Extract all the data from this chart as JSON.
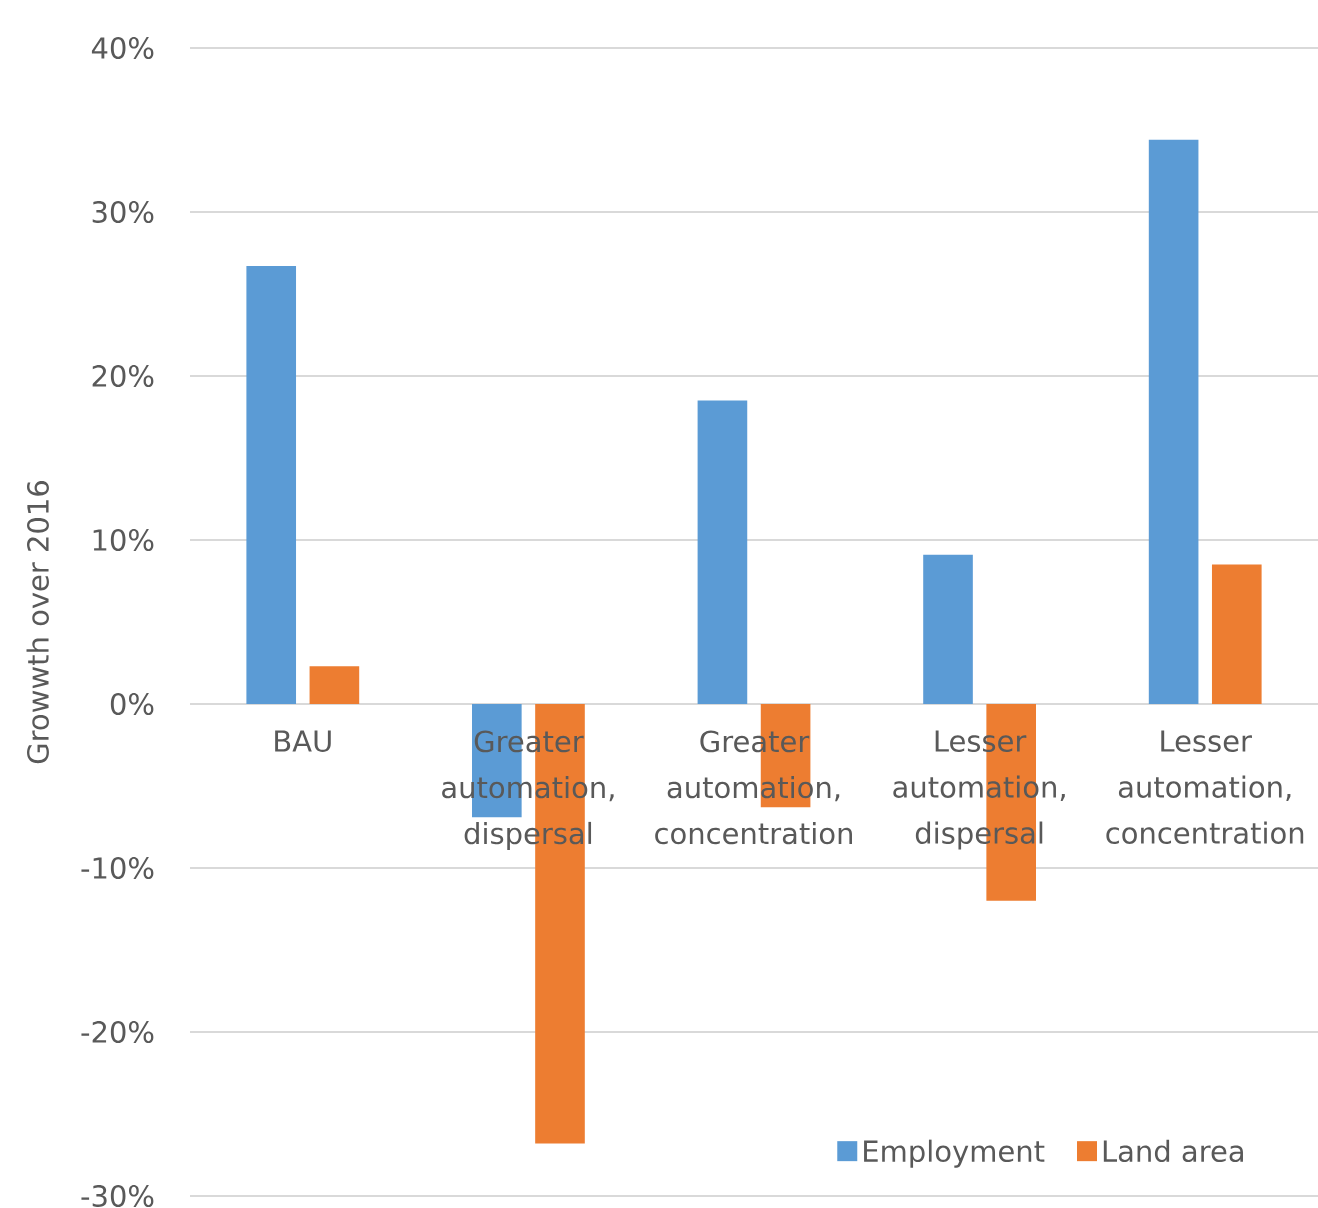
{
  "chart_data": {
    "type": "bar",
    "ylabel": "Growwth over 2016",
    "categories": [
      "BAU",
      "Greater automation, dispersal",
      "Greater automation, concentration",
      "Lesser automation, dispersal",
      "Lesser automation, concentration"
    ],
    "series": [
      {
        "name": "Employment",
        "color": "#5b9bd5",
        "values": [
          26.7,
          -6.9,
          18.5,
          9.1,
          34.4
        ]
      },
      {
        "name": "Land area",
        "color": "#ed7d31",
        "values": [
          2.3,
          -26.8,
          -6.3,
          -12.0,
          8.5
        ]
      }
    ],
    "ylim": [
      -30,
      40
    ],
    "yticks": [
      {
        "value": 40,
        "label": "40%"
      },
      {
        "value": 30,
        "label": "30%"
      },
      {
        "value": 20,
        "label": "20%"
      },
      {
        "value": 10,
        "label": "10%"
      },
      {
        "value": 0,
        "label": "0%"
      },
      {
        "value": -10,
        "label": "-10%"
      },
      {
        "value": -20,
        "label": "-20%"
      },
      {
        "value": -30,
        "label": "-30%"
      }
    ],
    "grid": "y",
    "legend": "bottom right"
  }
}
